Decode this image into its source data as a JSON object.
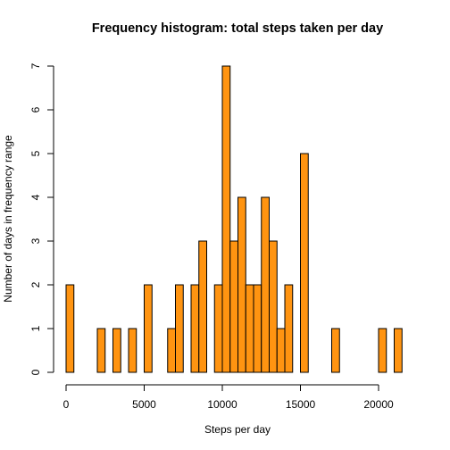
{
  "chart_data": {
    "type": "bar",
    "title": "Frequency histogram: total steps taken per day",
    "xlabel": "Steps per day",
    "ylabel": "Number of days in frequency range",
    "bar_color": "#FF9411",
    "bin_width": 500,
    "x_range": [
      0,
      22000
    ],
    "xlim": [
      0,
      22000
    ],
    "ylim": [
      0,
      7
    ],
    "x_ticks": [
      0,
      5000,
      10000,
      15000,
      20000
    ],
    "x_tick_labels": [
      "0",
      "5000",
      "10000",
      "15000",
      "20000"
    ],
    "y_ticks": [
      0,
      1,
      2,
      3,
      4,
      5,
      6,
      7
    ],
    "y_tick_labels": [
      "0",
      "1",
      "2",
      "3",
      "4",
      "5",
      "6",
      "7"
    ],
    "counts": [
      2,
      0,
      0,
      0,
      1,
      0,
      1,
      0,
      1,
      0,
      2,
      0,
      0,
      1,
      2,
      0,
      2,
      3,
      0,
      2,
      7,
      3,
      4,
      2,
      2,
      4,
      3,
      1,
      2,
      0,
      5,
      0,
      0,
      0,
      1,
      0,
      0,
      0,
      0,
      0,
      1,
      0,
      1
    ],
    "grid": false,
    "legend": "none"
  }
}
